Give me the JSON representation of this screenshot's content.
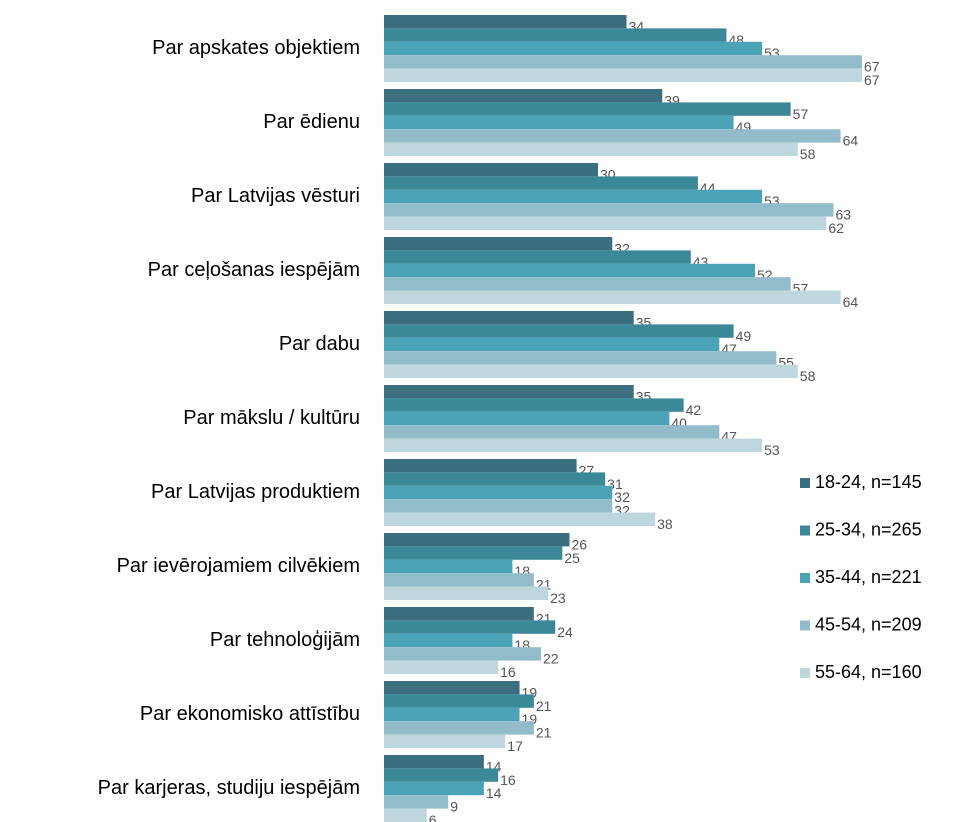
{
  "chart_data": {
    "type": "bar",
    "orientation": "horizontal",
    "categories": [
      "Par apskates objektiem",
      "Par ēdienu",
      "Par Latvijas vēsturi",
      "Par ceļošanas iespējām",
      "Par dabu",
      "Par mākslu / kultūru",
      "Par Latvijas produktiem",
      "Par ievērojamiem cilvēkiem",
      "Par tehnoloģijām",
      "Par ekonomisko attīstību",
      "Par karjeras, studiju iespējām"
    ],
    "series": [
      {
        "name": "18-24, n=145",
        "color": "#3b6f80",
        "values": [
          34,
          39,
          30,
          32,
          35,
          35,
          27,
          26,
          21,
          19,
          14
        ]
      },
      {
        "name": "25-34, n=265",
        "color": "#3a8898",
        "values": [
          48,
          57,
          44,
          43,
          49,
          42,
          31,
          25,
          24,
          21,
          16
        ]
      },
      {
        "name": "35-44, n=221",
        "color": "#4ba3b7",
        "values": [
          53,
          49,
          53,
          52,
          47,
          40,
          32,
          18,
          18,
          19,
          14
        ]
      },
      {
        "name": "45-54, n=209",
        "color": "#93bccb",
        "values": [
          67,
          64,
          63,
          57,
          55,
          47,
          32,
          21,
          22,
          21,
          9
        ]
      },
      {
        "name": "55-64, n=160",
        "color": "#bed6de",
        "values": [
          67,
          58,
          62,
          64,
          58,
          53,
          38,
          23,
          16,
          17,
          6
        ]
      }
    ],
    "legend": "right"
  }
}
